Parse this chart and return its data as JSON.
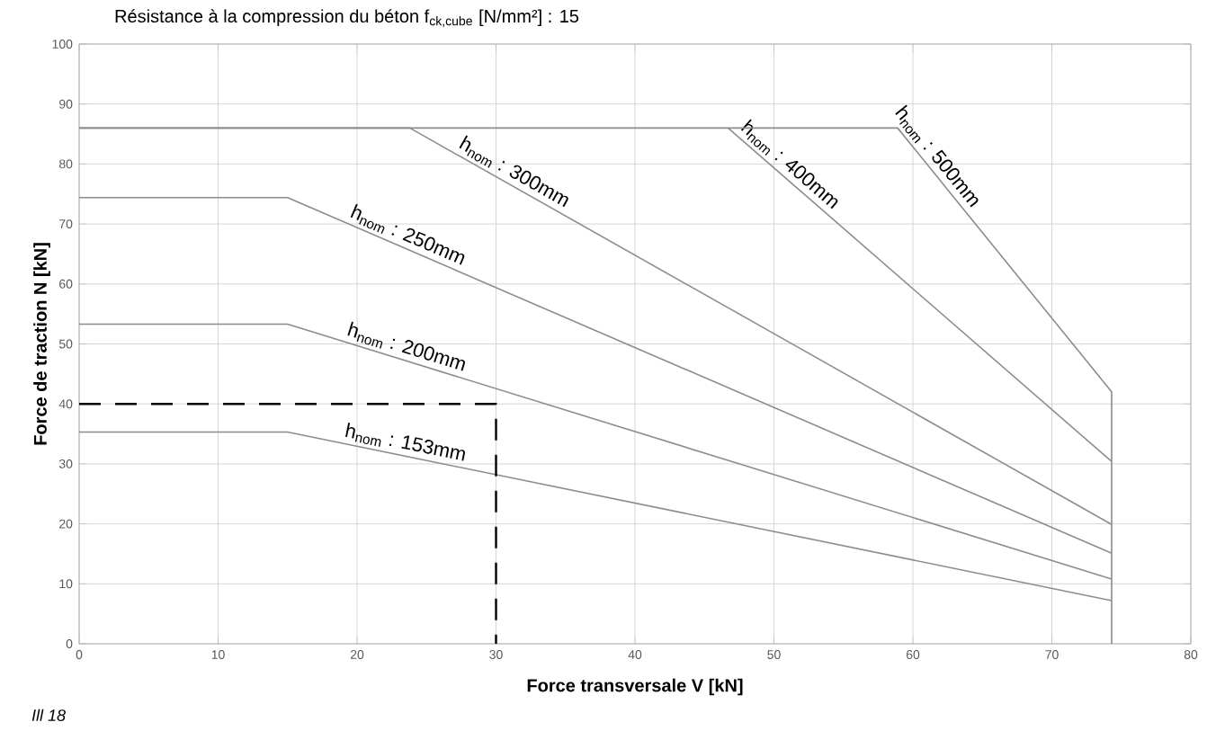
{
  "chart_data": {
    "type": "line",
    "title": "Résistance à la compression du béton f$_{ck,cube}$ [N/mm²] : 15",
    "xlabel": "Force transversale V [kN]",
    "ylabel": "Force de traction N [kN]",
    "xlim": [
      0,
      80
    ],
    "ylim": [
      0,
      100
    ],
    "xticks": [
      0,
      10,
      20,
      30,
      40,
      50,
      60,
      70,
      80
    ],
    "yticks": [
      0,
      10,
      20,
      30,
      40,
      50,
      60,
      70,
      80,
      90,
      100
    ],
    "grid": true,
    "legend": false,
    "marker": "none",
    "series": [
      {
        "name": "h$_{nom}$ : 153mm",
        "color": "#8c8c8c",
        "x": [
          0,
          15,
          74.3
        ],
        "values": [
          35.3,
          35.3,
          7.2
        ]
      },
      {
        "name": "h$_{nom}$ : 200mm",
        "color": "#8c8c8c",
        "x": [
          0,
          15,
          74.3
        ],
        "values": [
          53.3,
          53.3,
          10.8
        ]
      },
      {
        "name": "h$_{nom}$ : 250mm",
        "color": "#8c8c8c",
        "x": [
          0,
          15,
          74.3
        ],
        "values": [
          74.4,
          74.4,
          15.1
        ]
      },
      {
        "name": "h$_{nom}$ : 300mm",
        "color": "#8c8c8c",
        "x": [
          0,
          23.8,
          74.3
        ],
        "values": [
          86,
          86,
          19.9
        ]
      },
      {
        "name": "h$_{nom}$ : 400mm",
        "color": "#8c8c8c",
        "x": [
          46.7,
          74.3
        ],
        "values": [
          86,
          30.4
        ]
      },
      {
        "name": "h$_{nom}$ : 500mm",
        "color": "#8c8c8c",
        "x": [
          0,
          58.9,
          74.3,
          74.3
        ],
        "values": [
          86,
          86,
          42,
          0
        ]
      },
      {
        "color": "#000000",
        "line_style": "dashed",
        "x": [
          0,
          30,
          30
        ],
        "values": [
          40,
          40,
          0
        ]
      }
    ],
    "annotations": [
      "Ill 18"
    ]
  }
}
